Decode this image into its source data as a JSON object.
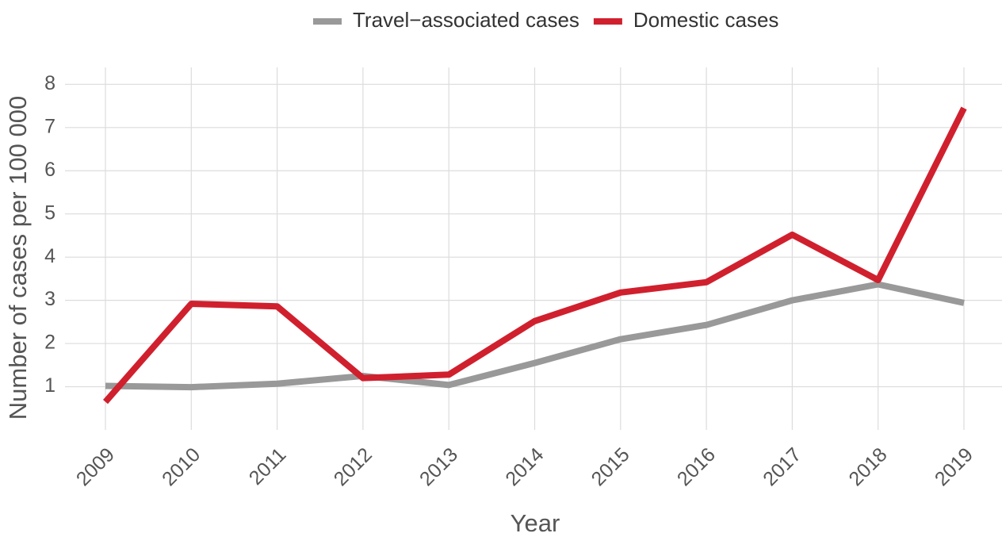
{
  "chart_data": {
    "type": "line",
    "x_label": "Year",
    "y_label": "Number of cases per 100 000",
    "categories": [
      "2009",
      "2010",
      "2011",
      "2012",
      "2013",
      "2014",
      "2015",
      "2016",
      "2017",
      "2018",
      "2019"
    ],
    "series": [
      {
        "name": "Travel−associated cases",
        "color": "#999999",
        "values": [
          1.02,
          0.99,
          1.07,
          1.25,
          1.04,
          1.55,
          2.1,
          2.43,
          3.0,
          3.37,
          2.94
        ]
      },
      {
        "name": "Domestic cases",
        "color": "#d0202e",
        "values": [
          0.65,
          2.92,
          2.86,
          1.2,
          1.28,
          2.52,
          3.18,
          3.42,
          4.52,
          3.47,
          7.45
        ]
      }
    ],
    "ylim": [
      0,
      8.3
    ],
    "yticks": [
      1,
      2,
      3,
      4,
      5,
      6,
      7,
      8
    ],
    "grid": true,
    "legend": "top"
  }
}
